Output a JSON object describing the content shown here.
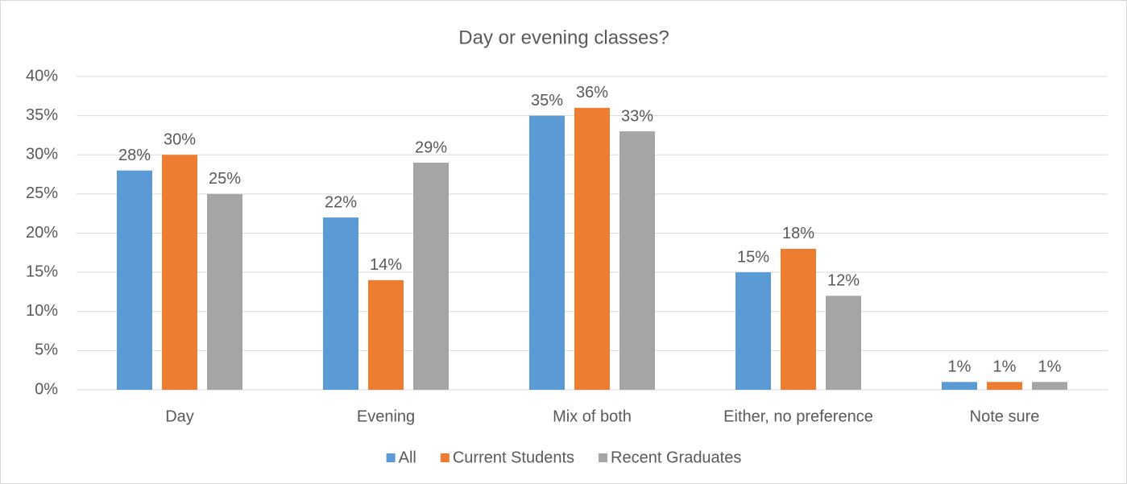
{
  "chart_data": {
    "type": "bar",
    "title": "Day or evening classes?",
    "categories": [
      "Day",
      "Evening",
      "Mix of both",
      "Either, no preference",
      "Note sure"
    ],
    "series": [
      {
        "name": "All",
        "color": "#5b9bd5",
        "values": [
          28,
          22,
          35,
          15,
          1
        ],
        "value_labels": [
          "28%",
          "22%",
          "35%",
          "15%",
          "1%"
        ]
      },
      {
        "name": "Current Students",
        "color": "#ed7d31",
        "values": [
          30,
          14,
          36,
          18,
          1
        ],
        "value_labels": [
          "30%",
          "14%",
          "36%",
          "18%",
          "1%"
        ]
      },
      {
        "name": "Recent Graduates",
        "color": "#a5a5a5",
        "values": [
          25,
          29,
          33,
          12,
          1
        ],
        "value_labels": [
          "25%",
          "29%",
          "33%",
          "12%",
          "1%"
        ]
      }
    ],
    "ylim": [
      0,
      40
    ],
    "yticks": [
      {
        "value": 0,
        "label": "0%"
      },
      {
        "value": 5,
        "label": "5%"
      },
      {
        "value": 10,
        "label": "10%"
      },
      {
        "value": 15,
        "label": "15%"
      },
      {
        "value": 20,
        "label": "20%"
      },
      {
        "value": 25,
        "label": "25%"
      },
      {
        "value": 30,
        "label": "30%"
      },
      {
        "value": 35,
        "label": "35%"
      },
      {
        "value": 40,
        "label": "40%"
      }
    ],
    "grid": true,
    "legend": "bottom"
  }
}
